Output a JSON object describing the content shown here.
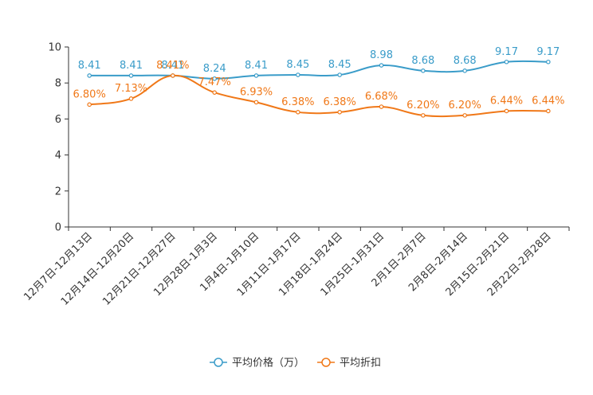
{
  "chart_data": {
    "type": "line",
    "title": "",
    "xlabel": "",
    "ylabel": "",
    "ylim": [
      0,
      10
    ],
    "yticks": [
      0,
      2,
      4,
      6,
      8,
      10
    ],
    "grid": false,
    "legend_position": "bottom-center",
    "categories": [
      "12月7日-12月13日",
      "12月14日-12月20日",
      "12月21日-12月27日",
      "12月28日-1月3日",
      "1月4日-1月10日",
      "1月11日-1月17日",
      "1月18日-1月24日",
      "1月25日-1月31日",
      "2月1日-2月7日",
      "2月8日-2月14日",
      "2月15日-2月21日",
      "2月22日-2月28日"
    ],
    "series": [
      {
        "name": "平均价格（万）",
        "color": "#3a9cc9",
        "values": [
          8.41,
          8.41,
          8.41,
          8.24,
          8.41,
          8.45,
          8.45,
          8.98,
          8.68,
          8.68,
          9.17,
          9.17
        ],
        "labels": [
          "8.41",
          "8.41",
          "8.41",
          "8.24",
          "8.41",
          "8.45",
          "8.45",
          "8.98",
          "8.68",
          "8.68",
          "9.17",
          "9.17"
        ]
      },
      {
        "name": "平均折扣",
        "color": "#f07818",
        "values": [
          6.8,
          7.13,
          8.41,
          7.47,
          6.93,
          6.38,
          6.38,
          6.68,
          6.2,
          6.2,
          6.44,
          6.44
        ],
        "labels": [
          "6.80%",
          "7.13%",
          "8.41%",
          "7.47%",
          "6.93%",
          "6.38%",
          "6.38%",
          "6.68%",
          "6.20%",
          "6.20%",
          "6.44%",
          "6.44%"
        ]
      }
    ]
  }
}
